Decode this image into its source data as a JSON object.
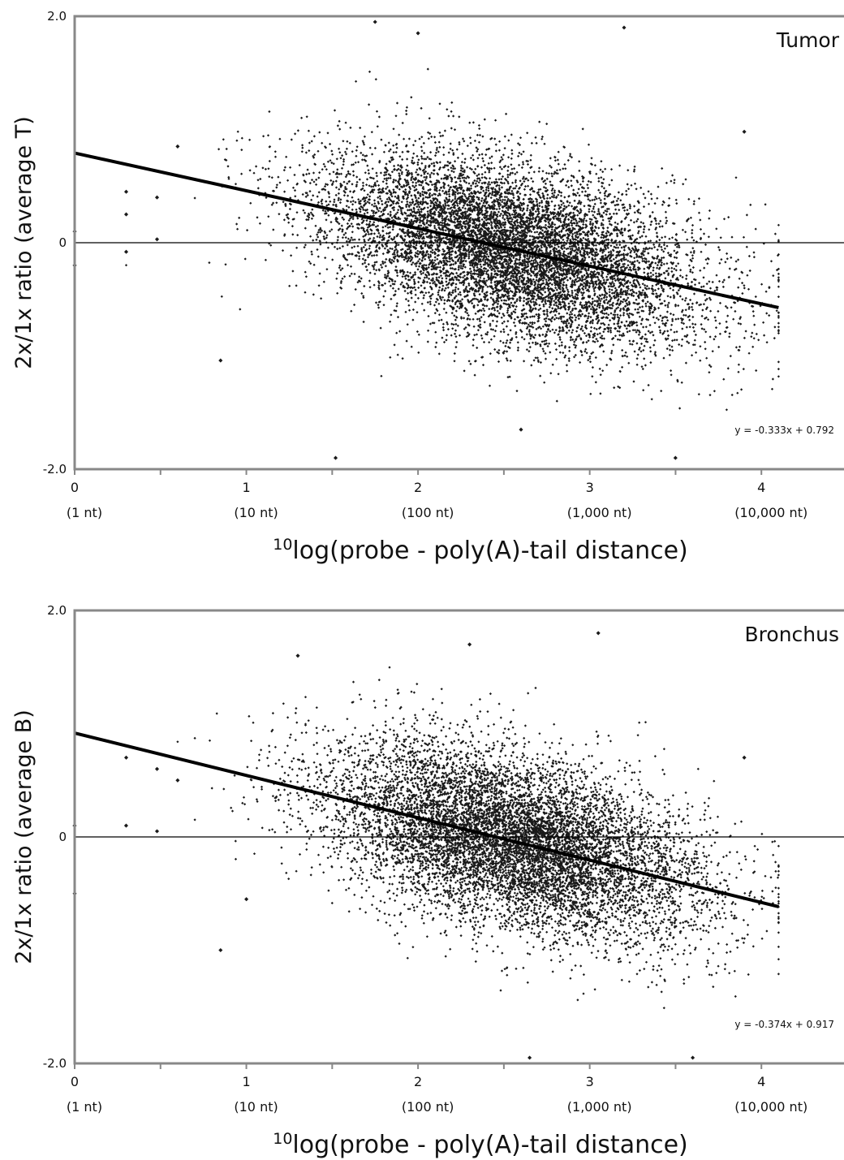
{
  "chart_data": [
    {
      "type": "scatter",
      "panel_label": "Tumor",
      "ylabel": "2x/1x ratio (average T)",
      "xlabel_sup": "10",
      "xlabel": "log(probe - poly(A)-tail distance)",
      "xlim": [
        0,
        4.5
      ],
      "ylim": [
        -2.0,
        2.0
      ],
      "x_ticks": [
        0,
        1,
        2,
        3,
        4
      ],
      "x_tick_labels": [
        "0",
        "1",
        "2",
        "3",
        "4"
      ],
      "x_tick_sublabels": [
        "(1 nt)",
        "(10 nt)",
        "(100 nt)",
        "(1,000 nt)",
        "(10,000 nt)"
      ],
      "y_ticks": [
        2.0,
        0,
        -2.0
      ],
      "y_tick_labels": [
        "2.0",
        "0",
        "-2.0"
      ],
      "reference_line_y": 0,
      "trendline": {
        "slope": -0.333,
        "intercept": 0.792,
        "x_range": [
          0,
          4.1
        ]
      },
      "equation": "y = -0.333x + 0.792",
      "cloud": {
        "n_points": 9000,
        "x_center": 2.55,
        "x_spread": 0.55,
        "y_spread": 0.38
      },
      "sample_points": [
        {
          "x": 0,
          "y": 0.1
        },
        {
          "x": 0,
          "y": -0.2
        },
        {
          "x": 0.3,
          "y": 0.45
        },
        {
          "x": 0.3,
          "y": 0.25
        },
        {
          "x": 0.3,
          "y": -0.08
        },
        {
          "x": 0.48,
          "y": 0.4
        },
        {
          "x": 0.48,
          "y": 0.03
        },
        {
          "x": 0.6,
          "y": 0.85
        },
        {
          "x": 0.85,
          "y": -1.04
        },
        {
          "x": 1.52,
          "y": -1.9
        },
        {
          "x": 1.75,
          "y": 1.95
        },
        {
          "x": 2.0,
          "y": 1.85
        },
        {
          "x": 2.6,
          "y": -1.65
        },
        {
          "x": 3.2,
          "y": 1.9
        },
        {
          "x": 3.5,
          "y": -1.9
        },
        {
          "x": 3.9,
          "y": 0.98
        }
      ]
    },
    {
      "type": "scatter",
      "panel_label": "Bronchus",
      "ylabel": "2x/1x ratio (average B)",
      "xlabel_sup": "10",
      "xlabel": "log(probe - poly(A)-tail distance)",
      "xlim": [
        0,
        4.5
      ],
      "ylim": [
        -2.0,
        2.0
      ],
      "x_ticks": [
        0,
        1,
        2,
        3,
        4
      ],
      "x_tick_labels": [
        "0",
        "1",
        "2",
        "3",
        "4"
      ],
      "x_tick_sublabels": [
        "(1 nt)",
        "(10 nt)",
        "(100 nt)",
        "(1,000 nt)",
        "(10,000 nt)"
      ],
      "y_ticks": [
        2.0,
        0,
        -2.0
      ],
      "y_tick_labels": [
        "2.0",
        "0",
        "-2.0"
      ],
      "reference_line_y": 0,
      "trendline": {
        "slope": -0.374,
        "intercept": 0.917,
        "x_range": [
          0,
          4.1
        ]
      },
      "equation": "y = -0.374x + 0.917",
      "cloud": {
        "n_points": 9000,
        "x_center": 2.55,
        "x_spread": 0.55,
        "y_spread": 0.38
      },
      "sample_points": [
        {
          "x": 0,
          "y": 0.1
        },
        {
          "x": 0,
          "y": -0.5
        },
        {
          "x": 0.3,
          "y": 0.7
        },
        {
          "x": 0.3,
          "y": 0.1
        },
        {
          "x": 0.48,
          "y": 0.6
        },
        {
          "x": 0.48,
          "y": 0.05
        },
        {
          "x": 0.6,
          "y": 0.5
        },
        {
          "x": 0.85,
          "y": -1.0
        },
        {
          "x": 1.0,
          "y": -0.55
        },
        {
          "x": 1.3,
          "y": 1.6
        },
        {
          "x": 2.3,
          "y": 1.7
        },
        {
          "x": 2.65,
          "y": -1.95
        },
        {
          "x": 3.05,
          "y": 1.8
        },
        {
          "x": 3.6,
          "y": -1.95
        },
        {
          "x": 3.9,
          "y": 0.7
        }
      ]
    }
  ]
}
